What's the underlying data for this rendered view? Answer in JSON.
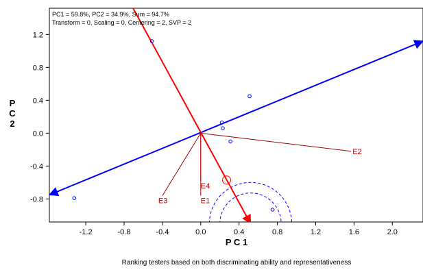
{
  "chart_data": {
    "type": "scatter",
    "stats_line_1": "PC1 = 59.8%, PC2 = 34.9%, Sum = 94.7%",
    "stats_line_2": "Transform = 0, Scaling = 0, Centering = 2, SVP = 2",
    "xlabel": "P C 1",
    "ylabel": "P C 2",
    "caption": "Ranking testers based on both discriminating ability and representativeness",
    "xlim": [
      -1.58,
      2.32
    ],
    "ylim": [
      -1.08,
      1.52
    ],
    "x_ticks": [
      -1.2,
      -0.8,
      -0.4,
      0.0,
      0.4,
      0.8,
      1.2,
      1.6,
      2.0
    ],
    "x_tick_labels": [
      "-1.2",
      "-0.8",
      "-0.4",
      "0.0",
      "0.4",
      "0.8",
      "1.2",
      "1.6",
      "2.0"
    ],
    "y_ticks": [
      1.2,
      0.8,
      0.4,
      0.0,
      -0.4,
      -0.8
    ],
    "y_tick_labels": [
      "1.2",
      "0.8",
      "0.4",
      "0.0",
      "-0.4",
      "-0.8"
    ],
    "genotype_points": [
      {
        "x": -0.51,
        "y": 1.12
      },
      {
        "x": 0.51,
        "y": 0.45
      },
      {
        "x": 0.22,
        "y": 0.13
      },
      {
        "x": 0.23,
        "y": 0.06
      },
      {
        "x": 0.31,
        "y": -0.1
      },
      {
        "x": -1.32,
        "y": -0.79
      },
      {
        "x": 0.75,
        "y": -0.93
      }
    ],
    "environment_vectors": [
      {
        "name": "E2",
        "x": 1.57,
        "y": -0.22
      },
      {
        "name": "E4",
        "x": 0.0,
        "y": -0.58
      },
      {
        "name": "E1",
        "x": 0.0,
        "y": -0.76
      },
      {
        "name": "E3",
        "x": -0.4,
        "y": -0.76
      }
    ],
    "average_environment_axis": {
      "from": {
        "x": -1.58,
        "y": -0.75
      },
      "to": {
        "x": 2.32,
        "y": 1.12
      }
    },
    "ideal_axis": {
      "from": {
        "x": -0.72,
        "y": 1.55
      },
      "to": {
        "x": 0.52,
        "y": -1.1
      }
    },
    "average_environment_marker": {
      "x": 0.27,
      "y": -0.57
    },
    "ideal_rings": {
      "center": {
        "x": 0.52,
        "y": -1.1
      },
      "radii": [
        0.32,
        0.43
      ]
    },
    "colors": {
      "average_axis": "#0000ff",
      "ideal_axis": "#ff0000",
      "environment": "#a00000",
      "points": "#0000ff"
    },
    "grid": false
  }
}
